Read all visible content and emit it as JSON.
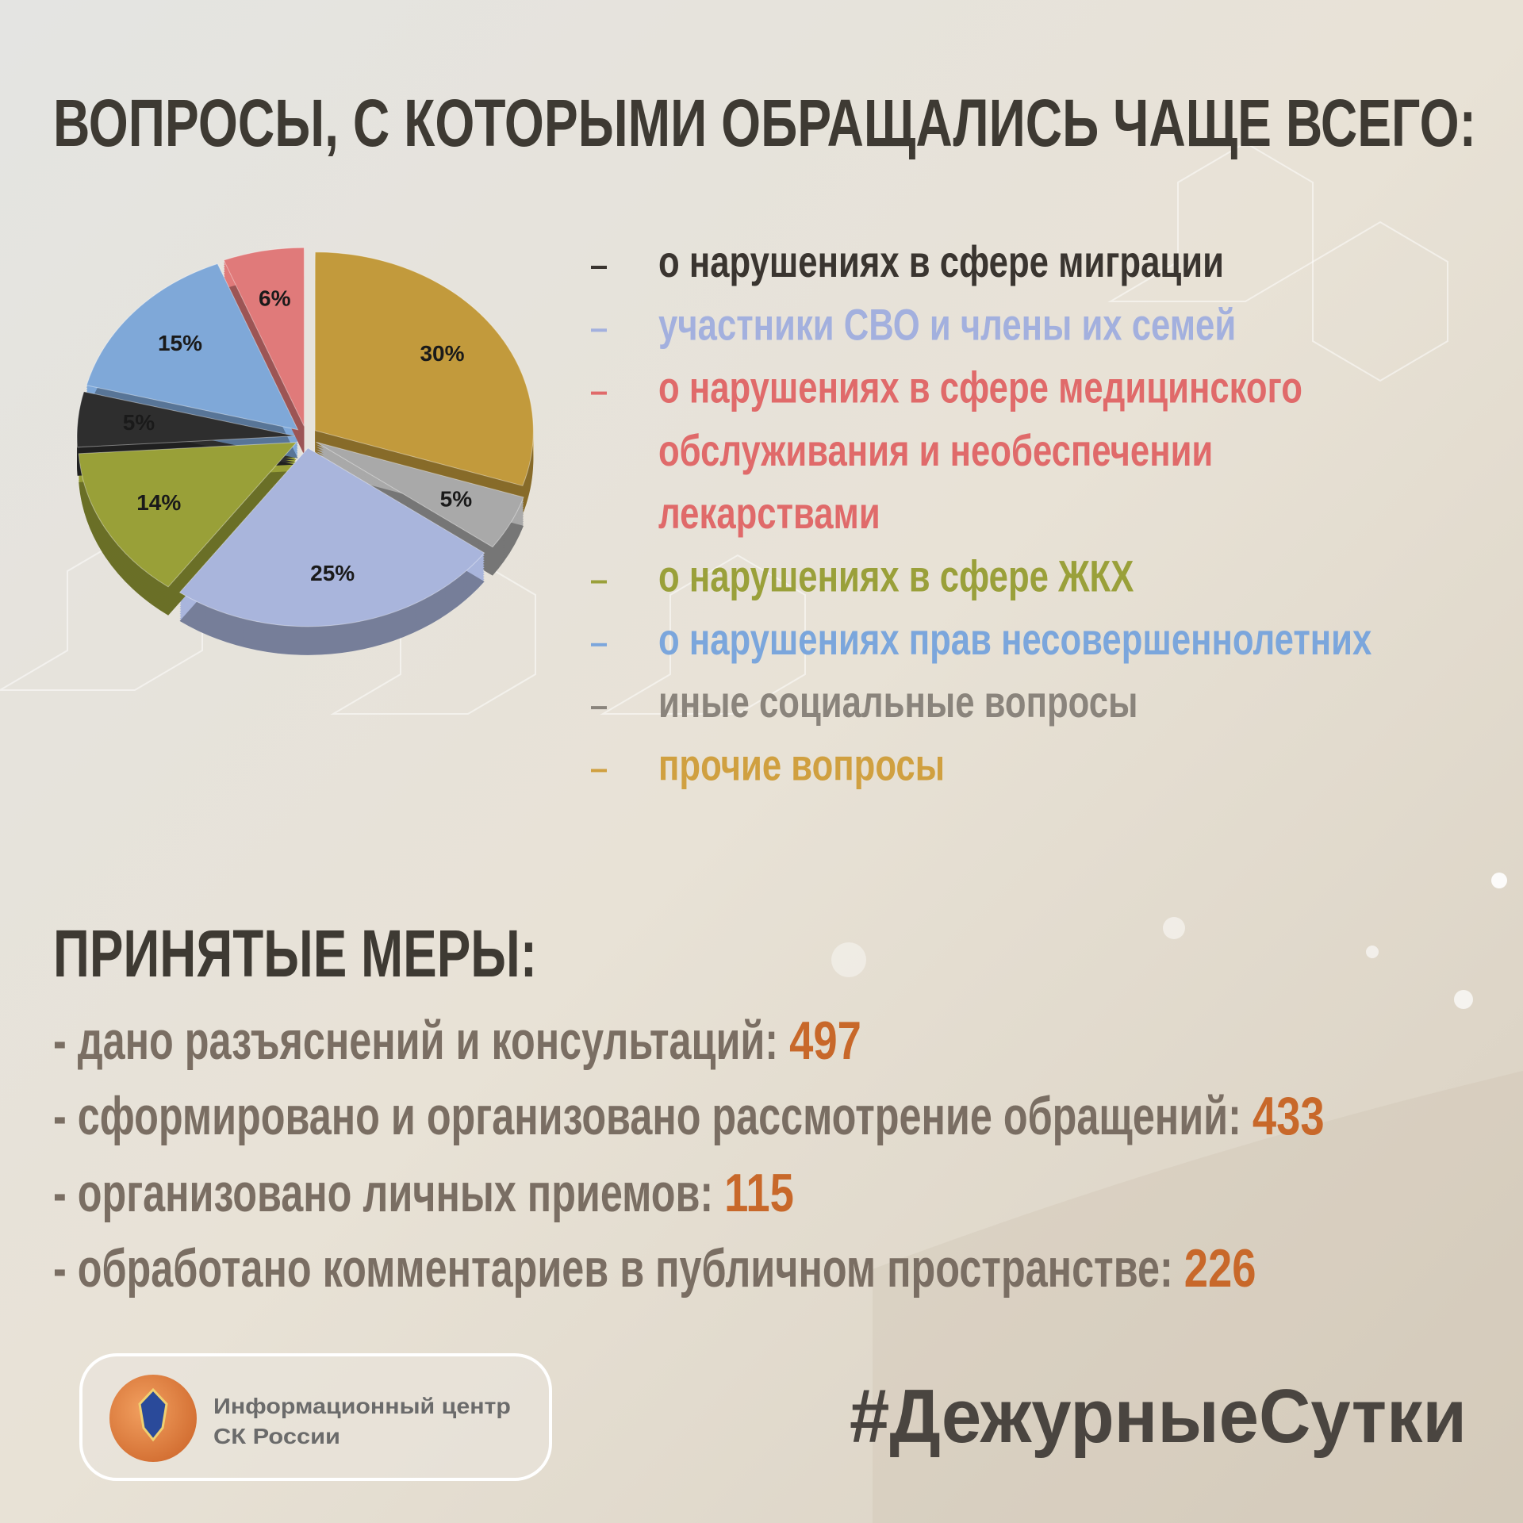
{
  "header": {
    "title": "ВОПРОСЫ, С КОТОРЫМИ ОБРАЩАЛИСЬ ЧАЩЕ ВСЕГО:"
  },
  "chart_data": {
    "type": "pie",
    "values": [
      30,
      5,
      25,
      14,
      5,
      15,
      6
    ],
    "value_labels": [
      "30%",
      "5%",
      "25%",
      "14%",
      "5%",
      "15%",
      "6%"
    ],
    "colors": [
      "#c29a3c",
      "#a9a9a9",
      "#a9b5dc",
      "#99a038",
      "#2e2e2e",
      "#7fa8d8",
      "#e07a7a"
    ]
  },
  "legend": {
    "items": [
      {
        "lines": [
          "о нарушениях в сфере миграции"
        ],
        "color": "#3a3530"
      },
      {
        "lines": [
          "участники СВО и члены их семей"
        ],
        "color": "#a3b0de"
      },
      {
        "lines": [
          "о нарушениях в сфере медицинского",
          "обслуживания и необеспечении",
          "лекарствами"
        ],
        "color": "#e06a6a"
      },
      {
        "lines": [
          "о нарушениях в сфере ЖКХ"
        ],
        "color": "#9aa03a"
      },
      {
        "lines": [
          "о нарушениях прав несовершеннолетних"
        ],
        "color": "#7ba6dc"
      },
      {
        "lines": [
          "иные социальные вопросы"
        ],
        "color": "#8a847c"
      },
      {
        "lines": [
          "прочие вопросы"
        ],
        "color": "#d0a040"
      }
    ]
  },
  "measures": {
    "title": "ПРИНЯТЫЕ МЕРЫ:",
    "items": [
      {
        "text": "- дано разъяснений и консультаций:",
        "value": 497
      },
      {
        "text": "- сформировано и организовано рассмотрение обращений:",
        "value": 433
      },
      {
        "text": "- организовано личных приемов:",
        "value": 115
      },
      {
        "text": "- обработано комментариев в публичном пространстве:",
        "value": 226
      }
    ]
  },
  "footer": {
    "org": [
      "Информационный центр",
      "СК России"
    ],
    "hashtag": "#ДежурныеСутки"
  }
}
